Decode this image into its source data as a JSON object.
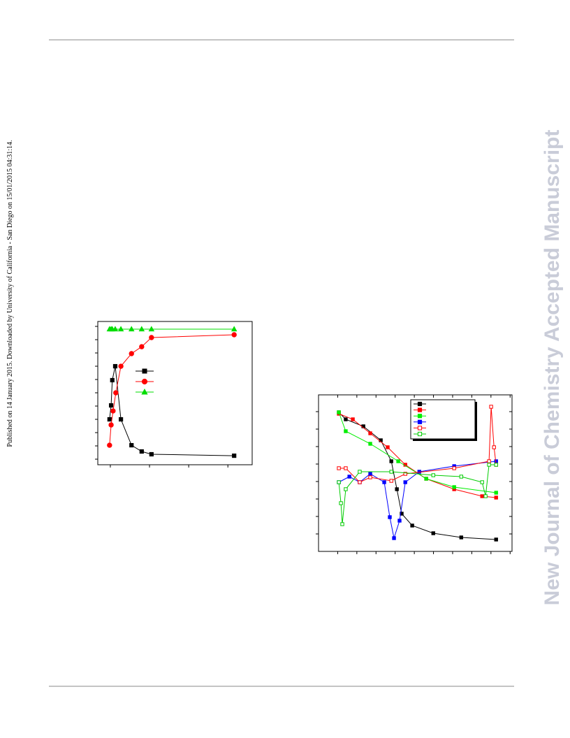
{
  "side_text": "Published on 14 January 2015. Downloaded by University of California - San Diego on 15/01/2015 04:31:14.",
  "watermark": "New Journal of Chemistry Accepted Manuscript",
  "charts": [
    {
      "type": "line",
      "xlim": [
        -0.32,
        3.62
      ],
      "xticks": [
        0,
        1,
        2,
        3
      ],
      "ylim": [
        -0.42,
        10.37
      ],
      "yticks": [
        0,
        1,
        2,
        3,
        4,
        5,
        6,
        7,
        8,
        9,
        10
      ],
      "series": [
        {
          "color": "#000000",
          "marker": "square",
          "filled": true,
          "x": [
            -0.02,
            0.02,
            0.05,
            0.125,
            0.27,
            0.54,
            0.8,
            1.05,
            3.16
          ],
          "values": [
            3.0,
            4.05,
            5.95,
            7.0,
            3.0,
            1.05,
            0.58,
            0.37,
            0.26
          ]
        },
        {
          "color": "#ff0000",
          "marker": "circle",
          "filled": true,
          "x": [
            -0.02,
            0.02,
            0.07,
            0.14,
            0.27,
            0.54,
            0.8,
            1.05,
            3.16
          ],
          "values": [
            1.05,
            2.58,
            3.63,
            5.0,
            7.0,
            7.95,
            8.47,
            9.16,
            9.37
          ]
        },
        {
          "color": "#00dd00",
          "marker": "triangle",
          "filled": true,
          "x": [
            -0.02,
            0.02,
            0.05,
            0.125,
            0.27,
            0.54,
            0.8,
            1.05,
            3.16
          ],
          "values": [
            9.79,
            9.79,
            9.79,
            9.79,
            9.79,
            9.79,
            9.79,
            9.79,
            9.79
          ]
        }
      ]
    },
    {
      "type": "line",
      "xlim": [
        0,
        10.1
      ],
      "xticks": [
        1,
        2,
        3,
        4,
        5,
        6,
        7,
        8,
        9,
        10
      ],
      "ylim": [
        0,
        8.96
      ],
      "yticks": [
        1,
        2,
        3,
        4,
        5,
        6,
        7,
        8
      ],
      "series": [
        {
          "color": "#000000",
          "marker": "square",
          "filled": true,
          "x": [
            1.06,
            1.42,
            2.34,
            3.25,
            3.8,
            4.09,
            4.34,
            4.89,
            5.99,
            7.45,
            9.27
          ],
          "values": [
            7.96,
            7.56,
            7.16,
            6.36,
            5.16,
            3.56,
            2.16,
            1.48,
            1.04,
            0.8,
            0.68
          ]
        },
        {
          "color": "#ff0000",
          "marker": "square",
          "filled": true,
          "x": [
            1.06,
            1.79,
            2.7,
            3.61,
            4.53,
            5.62,
            7.08,
            8.54,
            9.27
          ],
          "values": [
            7.88,
            7.56,
            6.76,
            5.96,
            4.96,
            4.16,
            3.56,
            3.16,
            3.08
          ]
        },
        {
          "color": "#00ee00",
          "marker": "square",
          "filled": true,
          "x": [
            1.06,
            1.42,
            2.7,
            4.16,
            5.62,
            7.08,
            9.27
          ],
          "values": [
            7.96,
            6.88,
            6.16,
            5.16,
            4.16,
            3.68,
            3.36
          ]
        },
        {
          "color": "#0000ff",
          "marker": "square",
          "filled": true,
          "x": [
            1.06,
            1.61,
            2.15,
            2.7,
            3.43,
            3.72,
            3.94,
            4.23,
            4.53,
            5.26,
            7.08,
            9.27
          ],
          "values": [
            3.96,
            4.28,
            3.96,
            4.44,
            3.96,
            1.96,
            0.76,
            1.76,
            3.96,
            4.56,
            4.88,
            5.16
          ]
        },
        {
          "color": "#ff0000",
          "marker": "square",
          "filled": false,
          "x": [
            1.06,
            1.42,
            2.15,
            2.7,
            3.8,
            4.53,
            7.08,
            8.9,
            9.01,
            9.16,
            9.27
          ],
          "values": [
            4.76,
            4.76,
            3.96,
            4.24,
            4.04,
            4.44,
            4.76,
            5.16,
            8.28,
            5.96,
            4.96
          ]
        },
        {
          "color": "#00cc00",
          "marker": "square",
          "filled": false,
          "x": [
            1.06,
            1.17,
            1.24,
            1.42,
            2.15,
            3.8,
            5.99,
            7.45,
            8.54,
            8.72,
            8.9,
            9.27
          ],
          "values": [
            3.96,
            2.76,
            1.56,
            3.56,
            4.56,
            4.56,
            4.36,
            4.28,
            3.96,
            3.16,
            4.96,
            4.96
          ]
        }
      ]
    }
  ]
}
